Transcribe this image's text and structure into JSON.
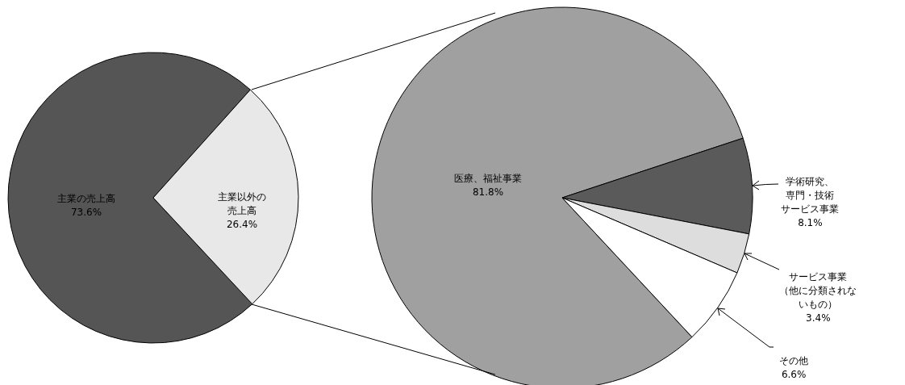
{
  "chart_data": [
    {
      "type": "pie",
      "categories": [
        "主業の売上高",
        "主業以外の売上高"
      ],
      "values": [
        73.6,
        26.4
      ],
      "value_labels": [
        "73.6%",
        "26.4%"
      ],
      "colors": [
        "#555555",
        "#e8e8e8"
      ]
    },
    {
      "type": "pie",
      "categories": [
        "医療、福祉事業",
        "学術研究、専門・技術サービス事業",
        "サービス事業（他に分類されないもの）",
        "その他"
      ],
      "values": [
        81.8,
        8.1,
        3.4,
        6.6
      ],
      "value_labels": [
        "81.8%",
        "8.1%",
        "3.4%",
        "6.6%"
      ],
      "colors": [
        "#a0a0a0",
        "#5a5a5a",
        "#dddddd",
        "#ffffff"
      ]
    }
  ]
}
